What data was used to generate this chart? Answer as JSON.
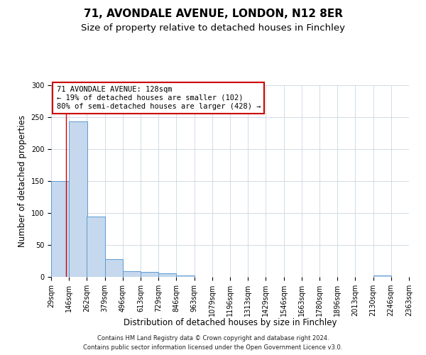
{
  "title": "71, AVONDALE AVENUE, LONDON, N12 8ER",
  "subtitle": "Size of property relative to detached houses in Finchley",
  "xlabel": "Distribution of detached houses by size in Finchley",
  "ylabel": "Number of detached properties",
  "bin_edges": [
    29,
    146,
    262,
    379,
    496,
    613,
    729,
    846,
    963,
    1079,
    1196,
    1313,
    1429,
    1546,
    1663,
    1780,
    1896,
    2013,
    2130,
    2246,
    2363
  ],
  "bin_labels": [
    "29sqm",
    "146sqm",
    "262sqm",
    "379sqm",
    "496sqm",
    "613sqm",
    "729sqm",
    "846sqm",
    "963sqm",
    "1079sqm",
    "1196sqm",
    "1313sqm",
    "1429sqm",
    "1546sqm",
    "1663sqm",
    "1780sqm",
    "1896sqm",
    "2013sqm",
    "2130sqm",
    "2246sqm",
    "2363sqm"
  ],
  "counts": [
    150,
    243,
    95,
    28,
    9,
    8,
    6,
    2,
    0,
    0,
    0,
    0,
    0,
    0,
    0,
    0,
    0,
    0,
    2,
    0,
    1
  ],
  "bar_color": "#c5d8ed",
  "bar_edge_color": "#5b9bd5",
  "vline_x": 128,
  "vline_color": "#cc0000",
  "ylim": [
    0,
    300
  ],
  "yticks": [
    0,
    50,
    100,
    150,
    200,
    250,
    300
  ],
  "annotation_title": "71 AVONDALE AVENUE: 128sqm",
  "annotation_line1": "← 19% of detached houses are smaller (102)",
  "annotation_line2": "80% of semi-detached houses are larger (428) →",
  "annotation_box_color": "#cc0000",
  "footnote1": "Contains HM Land Registry data © Crown copyright and database right 2024.",
  "footnote2": "Contains public sector information licensed under the Open Government Licence v3.0.",
  "bg_color": "#ffffff",
  "grid_color": "#d0dce8",
  "title_fontsize": 11,
  "subtitle_fontsize": 9.5,
  "label_fontsize": 8.5,
  "tick_fontsize": 7,
  "annot_fontsize": 7.5,
  "footnote_fontsize": 6
}
